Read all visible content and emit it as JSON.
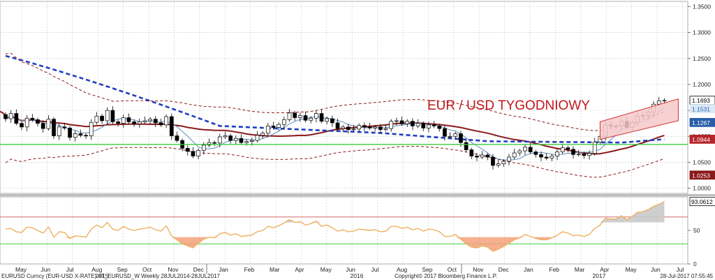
{
  "chart_data": {
    "type": "candlestick",
    "title": "EUR / USD TYGODNIOWY",
    "price_axis": {
      "ylim": [
        0.99,
        1.36
      ],
      "ticks": [
        "1.0000",
        "1.0500",
        "1.1000",
        "1.1500",
        "1.2000",
        "1.2500",
        "1.3000",
        "1.3500"
      ],
      "tick_values": [
        1.0,
        1.05,
        1.1,
        1.15,
        1.2,
        1.25,
        1.3,
        1.35
      ]
    },
    "price_tags": [
      {
        "label": "1.1693",
        "value": 1.1693,
        "color": "#ffffff",
        "text_color": "#000000"
      },
      {
        "label": "1.1531",
        "value": 1.1531,
        "color": "#dbe9f7",
        "text_color": "#1f5fa8"
      },
      {
        "label": "1.1267",
        "value": 1.1267,
        "color": "#2a5fa8",
        "text_color": "#ffffff"
      },
      {
        "label": "1.0944",
        "value": 1.0944,
        "color": "#b5262b",
        "text_color": "#ffffff"
      },
      {
        "label": "1.0253",
        "value": 1.0253,
        "color": "#8b1a1a",
        "text_color": "#ffffff"
      }
    ],
    "horizontal_line": {
      "value": 1.0845,
      "color": "#3ccc3c"
    },
    "ohlc": {
      "start_week": "2014-05-05",
      "open": [
        1.142,
        1.134,
        1.144,
        1.125,
        1.118,
        1.135,
        1.132,
        1.125,
        1.115,
        1.133,
        1.101,
        1.118,
        1.116,
        1.098,
        1.105,
        1.102,
        1.101,
        1.127,
        1.139,
        1.13,
        1.15,
        1.128,
        1.125,
        1.136,
        1.128,
        1.124,
        1.128,
        1.13,
        1.133,
        1.126,
        1.122,
        1.138,
        1.101,
        1.092,
        1.077,
        1.071,
        1.062,
        1.073,
        1.083,
        1.088,
        1.087,
        1.099,
        1.101,
        1.092,
        1.096,
        1.088,
        1.09,
        1.092,
        1.102,
        1.106,
        1.12,
        1.117,
        1.123,
        1.132,
        1.145,
        1.136,
        1.14,
        1.131,
        1.135,
        1.144,
        1.129,
        1.134,
        1.126,
        1.115,
        1.118,
        1.113,
        1.114,
        1.121,
        1.118,
        1.116,
        1.118,
        1.113,
        1.115,
        1.129,
        1.13,
        1.124,
        1.129,
        1.12,
        1.125,
        1.116,
        1.122,
        1.12,
        1.115,
        1.1,
        1.1,
        1.105,
        1.088,
        1.074,
        1.062,
        1.06,
        1.064,
        1.06,
        1.044,
        1.047,
        1.052,
        1.06,
        1.068,
        1.072,
        1.079,
        1.07,
        1.065,
        1.06,
        1.058,
        1.062,
        1.07,
        1.078,
        1.075,
        1.065,
        1.066,
        1.063,
        1.067,
        1.089,
        1.1,
        1.122,
        1.12,
        1.12,
        1.129,
        1.117,
        1.127,
        1.139,
        1.14,
        1.147,
        1.162,
        1.168
      ],
      "close": [
        1.134,
        1.144,
        1.125,
        1.118,
        1.135,
        1.132,
        1.125,
        1.115,
        1.133,
        1.101,
        1.118,
        1.116,
        1.098,
        1.105,
        1.102,
        1.101,
        1.127,
        1.139,
        1.13,
        1.15,
        1.128,
        1.125,
        1.136,
        1.128,
        1.124,
        1.128,
        1.13,
        1.133,
        1.126,
        1.122,
        1.138,
        1.101,
        1.092,
        1.077,
        1.071,
        1.062,
        1.073,
        1.083,
        1.088,
        1.087,
        1.099,
        1.101,
        1.092,
        1.096,
        1.088,
        1.09,
        1.092,
        1.102,
        1.106,
        1.12,
        1.117,
        1.123,
        1.132,
        1.145,
        1.136,
        1.14,
        1.131,
        1.135,
        1.144,
        1.129,
        1.134,
        1.126,
        1.115,
        1.118,
        1.113,
        1.114,
        1.121,
        1.118,
        1.116,
        1.118,
        1.113,
        1.115,
        1.129,
        1.13,
        1.124,
        1.129,
        1.12,
        1.125,
        1.116,
        1.122,
        1.12,
        1.115,
        1.1,
        1.1,
        1.105,
        1.088,
        1.074,
        1.062,
        1.06,
        1.064,
        1.06,
        1.044,
        1.047,
        1.052,
        1.06,
        1.068,
        1.072,
        1.079,
        1.07,
        1.065,
        1.06,
        1.058,
        1.062,
        1.07,
        1.078,
        1.075,
        1.065,
        1.066,
        1.063,
        1.067,
        1.089,
        1.1,
        1.122,
        1.12,
        1.12,
        1.129,
        1.117,
        1.127,
        1.139,
        1.14,
        1.147,
        1.162,
        1.168,
        1.1693
      ]
    },
    "indicator": {
      "ylim": [
        0,
        100
      ],
      "ticks": [
        "0",
        "50"
      ],
      "tick_values": [
        0,
        50
      ],
      "bands": [
        70,
        30
      ],
      "value_label": "93.0612",
      "value": 93.0612,
      "values": [
        52,
        53,
        48,
        47,
        55,
        54,
        50,
        46,
        55,
        40,
        48,
        47,
        38,
        42,
        41,
        40,
        52,
        58,
        54,
        62,
        52,
        50,
        56,
        52,
        50,
        52,
        53,
        55,
        51,
        49,
        57,
        42,
        36,
        30,
        27,
        24,
        31,
        37,
        40,
        39,
        45,
        47,
        43,
        45,
        41,
        42,
        43,
        48,
        50,
        56,
        54,
        57,
        61,
        66,
        62,
        63,
        58,
        60,
        64,
        56,
        58,
        54,
        49,
        51,
        48,
        49,
        52,
        51,
        50,
        51,
        48,
        49,
        56,
        56,
        53,
        55,
        51,
        53,
        49,
        52,
        51,
        48,
        41,
        41,
        44,
        37,
        30,
        25,
        24,
        27,
        25,
        19,
        22,
        26,
        31,
        36,
        39,
        44,
        41,
        38,
        36,
        36,
        39,
        43,
        48,
        46,
        42,
        43,
        41,
        44,
        53,
        58,
        68,
        67,
        67,
        72,
        66,
        71,
        77,
        78,
        81,
        86,
        89,
        93
      ]
    },
    "x_axis": {
      "month_labels": [
        "May",
        "Jun",
        "Jul",
        "Aug",
        "Sep",
        "Oct",
        "Nov",
        "Dec",
        "Jan",
        "Feb",
        "Mar",
        "Apr",
        "May",
        "Jun",
        "Jul",
        "Aug",
        "Sep",
        "Oct",
        "Nov",
        "Dec",
        "Jan",
        "Feb",
        "Mar",
        "Apr",
        "May",
        "Jun",
        "Jul"
      ],
      "year_labels": [
        "2015",
        "2016",
        "2017"
      ]
    },
    "footer": {
      "left": "EURUSD Curncy (EUR-USD X-RATE) AT_EURUSD_W  Weekly 28JUL2014-28JUL2017",
      "center": "Copyright© 2017 Bloomberg Finance L.P.",
      "right": "28-Jul-2017 07:55:45"
    },
    "colors": {
      "up_candle": "#ffffff",
      "down_candle": "#000000",
      "sma_short": "#5b8dbf",
      "sma_long": "#8b1a1a",
      "dashed_ma": "#1f3fbf",
      "envelope": "#8b1a1a",
      "channel_fill": "#f6c9c9",
      "channel_edge": "#d03030",
      "title": "#c0171c",
      "indicator_line": "#f0b060",
      "indicator_overbought": "#c9c9c9",
      "indicator_oversold": "#f4a07a"
    }
  }
}
